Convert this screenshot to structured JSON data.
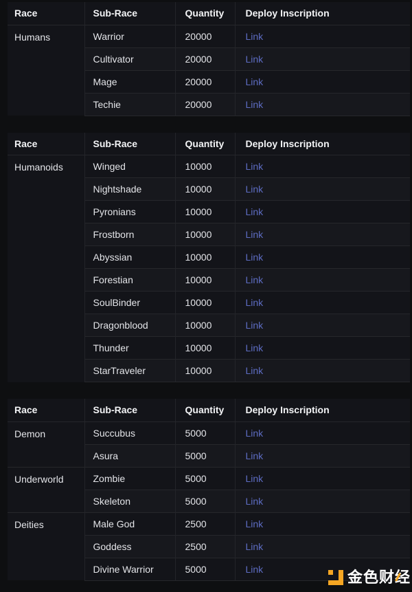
{
  "colors": {
    "page_background": "#0e0f11",
    "row_dark": "#131419",
    "row_light": "#17181d",
    "border": "#26272b",
    "header_text": "#f3f4f6",
    "body_text": "#e3e4e8",
    "link": "#5d6cc2",
    "logo_orange": "#f5a623"
  },
  "columns": [
    "Race",
    "Sub-Race",
    "Quantity",
    "Deploy Inscription"
  ],
  "link_label": "Link",
  "tables": [
    {
      "groups": [
        {
          "race": "Humans",
          "rows": [
            {
              "sub_race": "Warrior",
              "quantity": "20000"
            },
            {
              "sub_race": "Cultivator",
              "quantity": "20000"
            },
            {
              "sub_race": "Mage",
              "quantity": "20000"
            },
            {
              "sub_race": "Techie",
              "quantity": "20000"
            }
          ]
        }
      ]
    },
    {
      "groups": [
        {
          "race": "Humanoids",
          "rows": [
            {
              "sub_race": "Winged",
              "quantity": "10000"
            },
            {
              "sub_race": "Nightshade",
              "quantity": "10000"
            },
            {
              "sub_race": "Pyronians",
              "quantity": "10000"
            },
            {
              "sub_race": "Frostborn",
              "quantity": "10000"
            },
            {
              "sub_race": "Abyssian",
              "quantity": "10000"
            },
            {
              "sub_race": "Forestian",
              "quantity": "10000"
            },
            {
              "sub_race": "SoulBinder",
              "quantity": "10000"
            },
            {
              "sub_race": "Dragonblood",
              "quantity": "10000"
            },
            {
              "sub_race": "Thunder",
              "quantity": "10000"
            },
            {
              "sub_race": "StarTraveler",
              "quantity": "10000"
            }
          ]
        }
      ]
    },
    {
      "groups": [
        {
          "race": "Demon",
          "rows": [
            {
              "sub_race": "Succubus",
              "quantity": "5000"
            },
            {
              "sub_race": "Asura",
              "quantity": "5000"
            }
          ]
        },
        {
          "race": "Underworld",
          "rows": [
            {
              "sub_race": "Zombie",
              "quantity": "5000"
            },
            {
              "sub_race": "Skeleton",
              "quantity": "5000"
            }
          ]
        },
        {
          "race": "Deities",
          "rows": [
            {
              "sub_race": "Male God",
              "quantity": "2500"
            },
            {
              "sub_race": "Goddess",
              "quantity": "2500"
            },
            {
              "sub_race": "Divine Warrior",
              "quantity": "5000"
            }
          ]
        }
      ]
    }
  ],
  "watermark": {
    "text": "金色财经",
    "icon": "jinse-finance-logo"
  }
}
